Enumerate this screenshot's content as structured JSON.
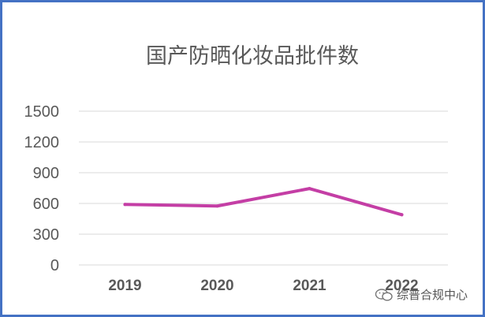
{
  "chart_data": {
    "type": "line",
    "title": "国产防晒化妆品批件数",
    "categories": [
      "2019",
      "2020",
      "2021",
      "2022"
    ],
    "series": [
      {
        "values": [
          590,
          575,
          745,
          490
        ]
      }
    ],
    "ylim": [
      0,
      1500
    ],
    "yticks": [
      "0",
      "300",
      "600",
      "900",
      "1200",
      "1500"
    ],
    "grid": true,
    "colors": {
      "line": "#c43ea5",
      "grid": "#d9d9d9",
      "border": "#4472c4"
    }
  },
  "watermark": {
    "text": "综普合规中心",
    "icon": "wechat-icon"
  }
}
